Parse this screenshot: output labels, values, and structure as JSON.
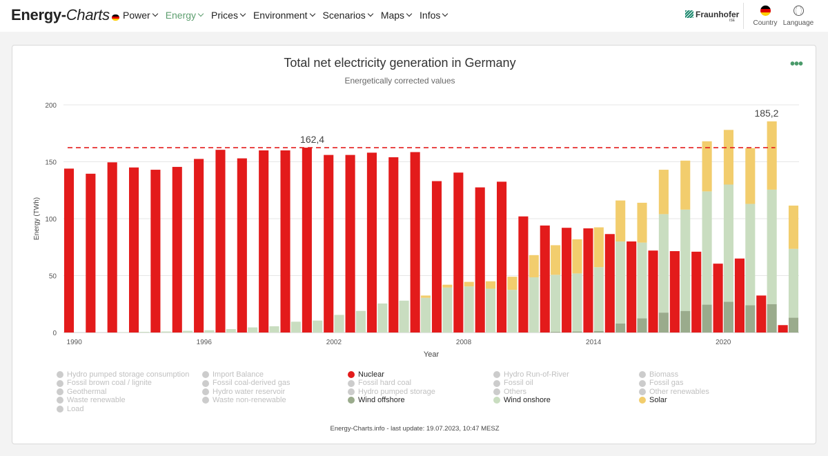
{
  "app": {
    "logo_bold": "Energy-",
    "logo_italic": "Charts",
    "nav": [
      "Power",
      "Energy",
      "Prices",
      "Environment",
      "Scenarios",
      "Maps",
      "Infos"
    ],
    "active_nav": "Energy",
    "fraunhofer": "Fraunhofer",
    "fraunhofer_sub": "ISE",
    "country_label": "Country",
    "language_label": "Language",
    "icons": {
      "country": "germany-flag-icon",
      "language": "globe-icon",
      "menu": "more-dots-icon"
    }
  },
  "chart_data": {
    "type": "bar",
    "title": "Total net electricity generation in Germany",
    "subtitle": "Energetically corrected values",
    "xlabel": "Year",
    "ylabel": "Energy (TWh)",
    "ylim": [
      0,
      200
    ],
    "yticks": [
      0,
      50,
      100,
      150,
      200
    ],
    "xticks": [
      1990,
      1996,
      2002,
      2008,
      2014,
      2020
    ],
    "grid": true,
    "categories": [
      1990,
      1991,
      1992,
      1993,
      1994,
      1995,
      1996,
      1997,
      1998,
      1999,
      2000,
      2001,
      2002,
      2003,
      2004,
      2005,
      2006,
      2007,
      2008,
      2009,
      2010,
      2011,
      2012,
      2013,
      2014,
      2015,
      2016,
      2017,
      2018,
      2019,
      2020,
      2021,
      2022,
      2023
    ],
    "series": [
      {
        "name": "Nuclear",
        "color": "#e31b1b",
        "values": [
          144,
          139.5,
          149.5,
          145,
          143,
          145.5,
          152.5,
          160.5,
          153,
          160,
          160,
          162.4,
          156,
          156,
          158,
          154,
          158.5,
          133,
          140.5,
          127.5,
          132.5,
          102,
          94,
          92,
          91.5,
          86.5,
          80,
          72,
          71.5,
          71,
          60.5,
          65,
          32.5,
          6.5
        ]
      },
      {
        "name": "Wind offshore",
        "color": "#9aab8c",
        "values": [
          0,
          0,
          0,
          0,
          0,
          0,
          0,
          0,
          0,
          0,
          0,
          0,
          0,
          0,
          0,
          0,
          0,
          0,
          0,
          0,
          0,
          0,
          0.7,
          0.9,
          1.4,
          8,
          12.5,
          17.5,
          19,
          24.5,
          27,
          24,
          25,
          13
        ]
      },
      {
        "name": "Wind onshore",
        "color": "#c9ddc0",
        "values": [
          0,
          0,
          0.3,
          0.6,
          0.9,
          1.5,
          2,
          3,
          4.5,
          5.5,
          9.5,
          10.5,
          15.5,
          19,
          25.5,
          28,
          30.5,
          39.5,
          40.5,
          38.5,
          37.5,
          48.5,
          50,
          51,
          56,
          72,
          66.5,
          86.5,
          89,
          99.5,
          103,
          89,
          100.5,
          60.5
        ]
      },
      {
        "name": "Solar",
        "color": "#f2cd6d",
        "values": [
          0,
          0,
          0,
          0,
          0,
          0,
          0,
          0,
          0,
          0,
          0,
          0,
          0,
          0,
          0,
          0,
          2,
          2.5,
          4,
          6.5,
          11.5,
          19.5,
          26,
          30,
          35,
          36,
          35,
          39,
          43,
          44,
          48,
          49,
          60,
          38
        ]
      }
    ],
    "reference_line": {
      "value": 162.4,
      "label": "162,4",
      "color": "#e31b1b",
      "style": "dashed"
    },
    "annotations": [
      {
        "x": 2001,
        "label": "162,4"
      },
      {
        "x": 2022,
        "label": "185,2"
      }
    ],
    "legend": [
      {
        "label": "Hydro pumped storage consumption",
        "active": false
      },
      {
        "label": "Import Balance",
        "active": false
      },
      {
        "label": "Nuclear",
        "active": true,
        "color": "#e31b1b"
      },
      {
        "label": "Hydro Run-of-River",
        "active": false
      },
      {
        "label": "Biomass",
        "active": false
      },
      {
        "label": "Fossil brown coal / lignite",
        "active": false
      },
      {
        "label": "Fossil coal-derived gas",
        "active": false
      },
      {
        "label": "Fossil hard coal",
        "active": false
      },
      {
        "label": "Fossil oil",
        "active": false
      },
      {
        "label": "Fossil gas",
        "active": false
      },
      {
        "label": "Geothermal",
        "active": false
      },
      {
        "label": "Hydro water reservoir",
        "active": false
      },
      {
        "label": "Hydro pumped storage",
        "active": false
      },
      {
        "label": "Others",
        "active": false
      },
      {
        "label": "Other renewables",
        "active": false
      },
      {
        "label": "Waste renewable",
        "active": false
      },
      {
        "label": "Waste non-renewable",
        "active": false
      },
      {
        "label": "Wind offshore",
        "active": true,
        "color": "#9aab8c"
      },
      {
        "label": "Wind onshore",
        "active": true,
        "color": "#c9ddc0"
      },
      {
        "label": "Solar",
        "active": true,
        "color": "#f2cd6d"
      },
      {
        "label": "Load",
        "active": false
      }
    ],
    "legend_position": "bottom"
  },
  "footer": "Energy-Charts.info - last update: 19.07.2023, 10:47 MESZ"
}
